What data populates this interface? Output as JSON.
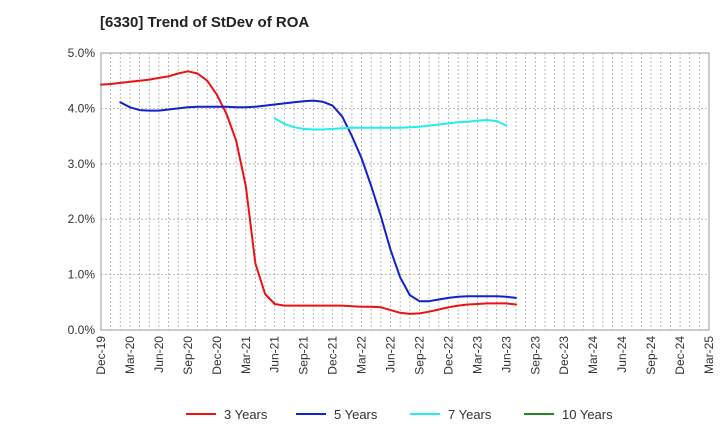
{
  "chart_data": {
    "type": "line",
    "title": "[6330]  Trend of StDev of ROA",
    "xlabel": "",
    "ylabel": "",
    "ylim": [
      0,
      5
    ],
    "y_ticks": [
      "0.0%",
      "1.0%",
      "2.0%",
      "3.0%",
      "4.0%",
      "5.0%"
    ],
    "x_ticks": [
      "Dec-19",
      "Mar-20",
      "Jun-20",
      "Sep-20",
      "Dec-20",
      "Mar-21",
      "Jun-21",
      "Sep-21",
      "Dec-21",
      "Mar-22",
      "Jun-22",
      "Sep-22",
      "Dec-22",
      "Mar-23",
      "Jun-23",
      "Sep-23",
      "Dec-23",
      "Mar-24",
      "Jun-24",
      "Sep-24",
      "Dec-24",
      "Mar-25"
    ],
    "grid": true,
    "legend_position": "bottom",
    "series": [
      {
        "name": "3 Years",
        "color": "#ee1111",
        "start_index": 0,
        "values": [
          4.43,
          4.44,
          4.46,
          4.48,
          4.5,
          4.52,
          4.55,
          4.58,
          4.63,
          4.67,
          4.63,
          4.5,
          4.25,
          3.9,
          3.42,
          2.6,
          1.2,
          0.65,
          0.47,
          0.44,
          0.44,
          0.44,
          0.44,
          0.44,
          0.44,
          0.44,
          0.43,
          0.42,
          0.42,
          0.41,
          0.36,
          0.31,
          0.29,
          0.3,
          0.33,
          0.37,
          0.41,
          0.44,
          0.46,
          0.47,
          0.48,
          0.48,
          0.48,
          0.46
        ]
      },
      {
        "name": "5 Years",
        "color": "#1122cc",
        "start_index": 2,
        "values": [
          4.11,
          4.02,
          3.97,
          3.96,
          3.96,
          3.98,
          4.0,
          4.02,
          4.03,
          4.03,
          4.03,
          4.03,
          4.02,
          4.02,
          4.03,
          4.05,
          4.07,
          4.09,
          4.11,
          4.13,
          4.14,
          4.12,
          4.05,
          3.85,
          3.5,
          3.1,
          2.6,
          2.05,
          1.45,
          0.95,
          0.63,
          0.52,
          0.52,
          0.55,
          0.58,
          0.6,
          0.61,
          0.61,
          0.61,
          0.61,
          0.6,
          0.58
        ]
      },
      {
        "name": "7 Years",
        "color": "#22eeee",
        "start_index": 18,
        "values": [
          3.82,
          3.72,
          3.66,
          3.63,
          3.62,
          3.62,
          3.63,
          3.64,
          3.65,
          3.65,
          3.65,
          3.65,
          3.65,
          3.65,
          3.66,
          3.67,
          3.69,
          3.71,
          3.73,
          3.75,
          3.76,
          3.78,
          3.79,
          3.77,
          3.69
        ]
      },
      {
        "name": "10 Years",
        "color": "#228822",
        "start_index": 0,
        "values": []
      }
    ]
  }
}
